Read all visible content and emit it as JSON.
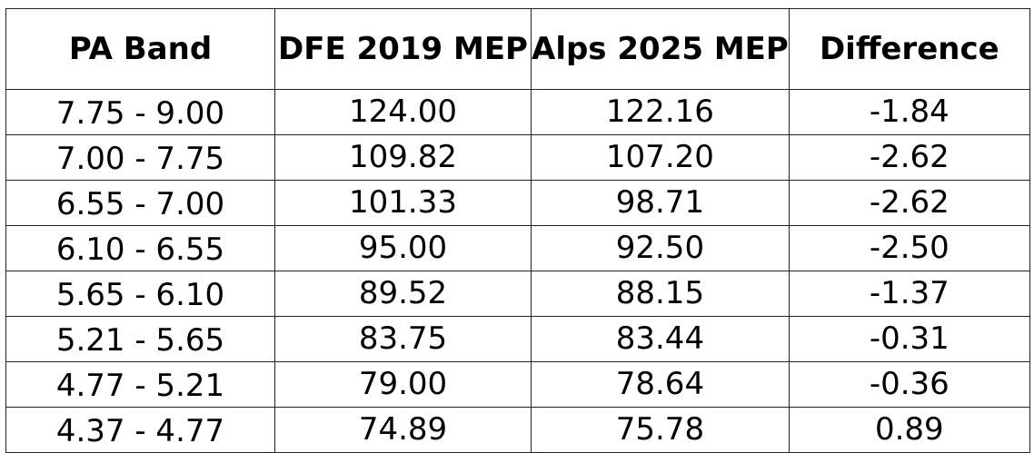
{
  "table": {
    "headers": [
      "PA Band",
      "DFE 2019 MEP",
      "Alps 2025 MEP",
      "Difference"
    ],
    "rows": [
      [
        "7.75 - 9.00",
        "124.00",
        "122.16",
        "-1.84"
      ],
      [
        "7.00 - 7.75",
        "109.82",
        "107.20",
        "-2.62"
      ],
      [
        "6.55 - 7.00",
        "101.33",
        "98.71",
        "-2.62"
      ],
      [
        "6.10 - 6.55",
        "95.00",
        "92.50",
        "-2.50"
      ],
      [
        "5.65 - 6.10",
        "89.52",
        "88.15",
        "-1.37"
      ],
      [
        "5.21 - 5.65",
        "83.75",
        "83.44",
        "-0.31"
      ],
      [
        "4.77 - 5.21",
        "79.00",
        "78.64",
        "-0.36"
      ],
      [
        "4.37 - 4.77",
        "74.89",
        "75.78",
        "0.89"
      ]
    ]
  }
}
